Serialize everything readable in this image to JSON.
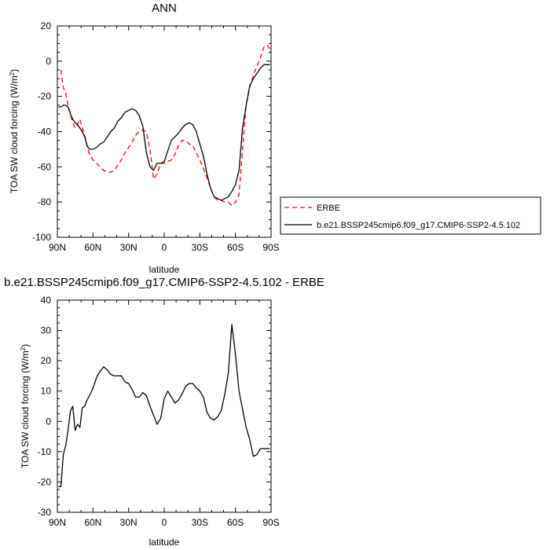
{
  "chart_data": [
    {
      "type": "line",
      "title": "ANN",
      "xlabel": "latitude",
      "ylabel": "TOA SW cloud forcing (W/m",
      "ylabel_superscript": "2",
      "ylabel_close": ")",
      "xlim": [
        90,
        -90
      ],
      "ylim": [
        -100,
        20
      ],
      "x_ticks": [
        {
          "value": 90,
          "label": "90N"
        },
        {
          "value": 60,
          "label": "60N"
        },
        {
          "value": 30,
          "label": "30N"
        },
        {
          "value": 0,
          "label": "0"
        },
        {
          "value": -30,
          "label": "30S"
        },
        {
          "value": -60,
          "label": "60S"
        },
        {
          "value": -90,
          "label": "90S"
        }
      ],
      "y_ticks": [
        20,
        0,
        -20,
        -40,
        -60,
        -80,
        -100
      ],
      "legend_position": "right",
      "series": [
        {
          "name": "ERBE",
          "color": "#ff0000",
          "style": "dashed",
          "x": [
            87,
            85,
            83,
            81,
            79,
            77,
            75,
            73,
            71,
            69,
            67,
            65,
            63,
            60,
            57,
            54,
            51,
            48,
            45,
            42,
            39,
            36,
            33,
            30,
            27,
            24,
            21,
            18,
            15,
            12,
            9,
            6,
            3,
            0,
            -3,
            -6,
            -9,
            -12,
            -15,
            -18,
            -21,
            -24,
            -27,
            -30,
            -33,
            -36,
            -39,
            -42,
            -45,
            -48,
            -51,
            -54,
            -57,
            -60,
            -63,
            -66,
            -69,
            -72,
            -75,
            -78,
            -81,
            -84,
            -87,
            -89
          ],
          "values": [
            -5,
            -15,
            -18,
            -25,
            -30,
            -35,
            -38,
            -36,
            -33,
            -38,
            -42,
            -48,
            -53,
            -56,
            -58,
            -60,
            -62,
            -63,
            -63,
            -62,
            -59,
            -56,
            -52,
            -49,
            -46,
            -42,
            -40,
            -39,
            -40,
            -50,
            -67,
            -64,
            -58,
            -58,
            -57,
            -56,
            -53,
            -48,
            -45,
            -45,
            -47,
            -48,
            -52,
            -56,
            -61,
            -66,
            -72,
            -77,
            -79,
            -79,
            -80,
            -80,
            -82,
            -80,
            -76,
            -50,
            -25,
            -15,
            -8,
            -3,
            2,
            8,
            9,
            7
          ]
        },
        {
          "name": "b.e21.BSSP245cmip6.f09_g17.CMIP6-SSP2-4.5.102",
          "color": "#000000",
          "style": "solid",
          "x": [
            89,
            87,
            85,
            83,
            81,
            79,
            77,
            75,
            73,
            71,
            69,
            67,
            65,
            63,
            60,
            57,
            54,
            51,
            48,
            45,
            42,
            39,
            36,
            33,
            30,
            27,
            24,
            21,
            18,
            15,
            12,
            9,
            6,
            3,
            0,
            -3,
            -6,
            -9,
            -12,
            -15,
            -18,
            -21,
            -24,
            -27,
            -30,
            -33,
            -36,
            -39,
            -42,
            -45,
            -48,
            -51,
            -54,
            -57,
            -60,
            -63,
            -66,
            -69,
            -72,
            -75,
            -78,
            -81,
            -84,
            -87,
            -89
          ],
          "values": [
            -26,
            -26,
            -25,
            -25,
            -26,
            -30,
            -33,
            -35,
            -36,
            -38,
            -40,
            -43,
            -48,
            -50,
            -50,
            -49,
            -47,
            -46,
            -43,
            -40,
            -38,
            -34,
            -32,
            -29,
            -28,
            -27,
            -28,
            -31,
            -37,
            -52,
            -60,
            -62,
            -58,
            -58,
            -57,
            -51,
            -45,
            -43,
            -41,
            -38,
            -36,
            -35,
            -36,
            -40,
            -47,
            -54,
            -64,
            -72,
            -77,
            -78,
            -79,
            -78,
            -77,
            -74,
            -70,
            -62,
            -38,
            -25,
            -14,
            -10,
            -7,
            -4,
            -2,
            -2,
            -2
          ]
        }
      ]
    },
    {
      "type": "line",
      "title": "b.e21.BSSP245cmip6.f09_g17.CMIP6-SSP2-4.5.102 - ERBE",
      "xlabel": "latitude",
      "ylabel": "TOA SW cloud forcing (W/m",
      "ylabel_superscript": "2",
      "ylabel_close": ")",
      "xlim": [
        90,
        -90
      ],
      "ylim": [
        -30,
        40
      ],
      "x_ticks": [
        {
          "value": 90,
          "label": "90N"
        },
        {
          "value": 60,
          "label": "60N"
        },
        {
          "value": 30,
          "label": "30N"
        },
        {
          "value": 0,
          "label": "0"
        },
        {
          "value": -30,
          "label": "30S"
        },
        {
          "value": -60,
          "label": "60S"
        },
        {
          "value": -90,
          "label": "90S"
        }
      ],
      "y_ticks": [
        40,
        30,
        20,
        10,
        0,
        -10,
        -20,
        -30
      ],
      "series": [
        {
          "color": "#000000",
          "style": "solid",
          "x": [
            89,
            87,
            85,
            83,
            81,
            79,
            77,
            75,
            73,
            71,
            69,
            67,
            65,
            63,
            61,
            59,
            57,
            55,
            53,
            51,
            48,
            45,
            42,
            39,
            36,
            33,
            30,
            27,
            24,
            21,
            18,
            15,
            12,
            9,
            6,
            3,
            0,
            -3,
            -6,
            -9,
            -12,
            -15,
            -18,
            -21,
            -24,
            -27,
            -30,
            -33,
            -36,
            -39,
            -42,
            -45,
            -48,
            -51,
            -54,
            -57,
            -60,
            -63,
            -66,
            -69,
            -72,
            -75,
            -78,
            -81,
            -84,
            -87,
            -89
          ],
          "values": [
            -21.5,
            -21.5,
            -11,
            -8,
            -3,
            3.5,
            5,
            -3,
            -1,
            -2,
            4.5,
            5,
            7,
            8.5,
            10,
            12,
            14.5,
            16,
            17,
            18,
            17,
            15.5,
            15,
            15,
            15,
            13,
            12.5,
            10.5,
            8,
            8,
            9.5,
            8.5,
            5,
            2,
            -1,
            1,
            7.5,
            10,
            8,
            6,
            7,
            9,
            11.5,
            12.5,
            12.5,
            11,
            10,
            8,
            3,
            1,
            0.5,
            1.5,
            3.5,
            9,
            16,
            32,
            22,
            10,
            4,
            -2,
            -6,
            -11.5,
            -11,
            -9,
            -9,
            -9,
            -9
          ]
        }
      ]
    }
  ]
}
